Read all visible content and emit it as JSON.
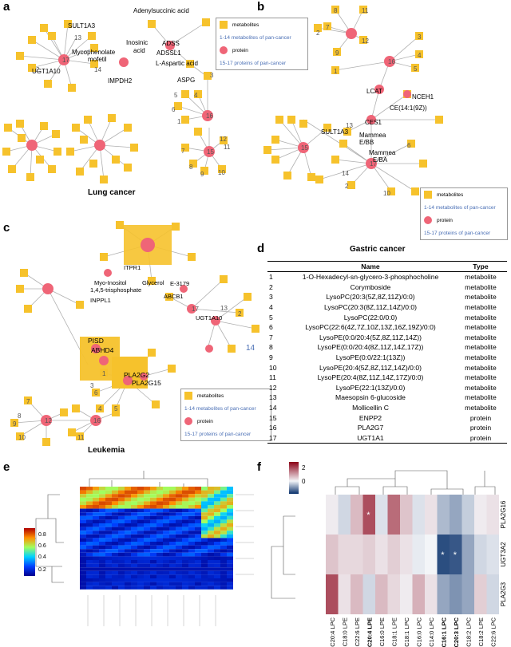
{
  "colors": {
    "metabolite": "#f6c22c",
    "protein": "#ef6577",
    "edge": "#b0b0b0",
    "legend_blue": "#4a6fb5"
  },
  "panel_labels": {
    "a": "a",
    "b": "b",
    "c": "c",
    "d": "d",
    "e": "e",
    "f": "f"
  },
  "legend": {
    "metabolites": "metabolites",
    "range_1_14": "1-14 metabolites of pan-cancer",
    "protein": "protein",
    "range_15_17": "15-17 proteins of pan-cancer"
  },
  "panel_a": {
    "title": "Lung cancer",
    "labels": {
      "sult": "SULT1A3",
      "myco": "Mycophenolate",
      "myco2": "mofetil",
      "ugt": "UGT1A10",
      "impdh": "IMPDH2",
      "adenyl": "Adenylsuccinic acid",
      "ino": "Inosinic",
      "ino2": "acid",
      "adss": "ADSS",
      "adssl": "ADSSL1",
      "lasp": "L-Aspartic acid",
      "aspg": "ASPG"
    },
    "nums": [
      "13",
      "2",
      "14",
      "17",
      "16",
      "3",
      "4",
      "5",
      "6",
      "1",
      "11",
      "7",
      "8",
      "9",
      "10",
      "12",
      "15"
    ]
  },
  "panel_b": {
    "title": "Gastric cancer",
    "labels": {
      "lcat": "LCAT",
      "nceh": "NCEH1",
      "ce": "CE(14:1(9Z))",
      "ces": "CES1",
      "sult": "SULT1A3",
      "mam1": "Mammea",
      "mam1b": "E/BB",
      "mam2": "Mammea",
      "mam2b": "E/BA"
    },
    "nums": [
      "11",
      "12",
      "7",
      "9",
      "8",
      "2",
      "3",
      "4",
      "1",
      "5",
      "16",
      "13",
      "15",
      "17",
      "14",
      "2",
      "10",
      "6"
    ]
  },
  "panel_c": {
    "title": "Leukemia",
    "labels": {
      "itpr": "ITPR1",
      "glyc": "Glycerol",
      "myoi": "Myo-Inositol",
      "myoi2": "1,4,5-trisphosphate",
      "inpp": "INPPL1",
      "e3179": "E-3179",
      "abcb": "ABCB1",
      "ugt": "UGT1A10",
      "pisd": "PISD",
      "abhd": "ABHD4",
      "pla2g": "PLA2G2",
      "pla2g15": "PLA2G15",
      "n14": "14"
    },
    "nums": [
      "13",
      "17",
      "2",
      "1",
      "6",
      "4",
      "5",
      "3",
      "7",
      "8",
      "9",
      "10",
      "11",
      "12",
      "16"
    ]
  },
  "table": {
    "headers": {
      "num": "",
      "name": "Name",
      "type": "Type"
    },
    "rows": [
      {
        "num": "1",
        "name": "1-O-Hexadecyl-sn-glycero-3-phosphocholine",
        "type": "metabolite"
      },
      {
        "num": "2",
        "name": "Corymboside",
        "type": "metabolite"
      },
      {
        "num": "3",
        "name": "LysoPC(20:3(5Z,8Z,11Z)/0:0)",
        "type": "metabolite"
      },
      {
        "num": "4",
        "name": "LysoPC(20:3(8Z,11Z,14Z)/0:0)",
        "type": "metabolite"
      },
      {
        "num": "5",
        "name": "LysoPC(22:0/0:0)",
        "type": "metabolite"
      },
      {
        "num": "6",
        "name": "LysoPC(22:6(4Z,7Z,10Z,13Z,16Z,19Z)/0:0)",
        "type": "metabolite"
      },
      {
        "num": "7",
        "name": "LysoPE(0:0/20:4(5Z,8Z,11Z,14Z))",
        "type": "metabolite"
      },
      {
        "num": "8",
        "name": "LysoPE(0:0/20:4(8Z,11Z,14Z,17Z))",
        "type": "metabolite"
      },
      {
        "num": "9",
        "name": "LysoPE(0:0/22:1(13Z))",
        "type": "metabolite"
      },
      {
        "num": "10",
        "name": "LysoPE(20:4(5Z,8Z,11Z,14Z)/0:0)",
        "type": "metabolite"
      },
      {
        "num": "11",
        "name": "LysoPE(20:4(8Z,11Z,14Z,17Z)/0:0)",
        "type": "metabolite"
      },
      {
        "num": "12",
        "name": "LysoPE(22:1(13Z)/0:0)",
        "type": "metabolite"
      },
      {
        "num": "13",
        "name": "Maesopsin 6-glucoside",
        "type": "metabolite"
      },
      {
        "num": "14",
        "name": "Mollicellin C",
        "type": "metabolite"
      },
      {
        "num": "15",
        "name": "ENPP2",
        "type": "protein"
      },
      {
        "num": "16",
        "name": "PLA2G7",
        "type": "protein"
      },
      {
        "num": "17",
        "name": "UGT1A1",
        "type": "protein"
      }
    ]
  },
  "panel_e": {
    "scale_ticks": [
      "0.8",
      "0.6",
      "0.4",
      "0.2"
    ]
  },
  "panel_f": {
    "scale_ticks": [
      "2",
      "0"
    ],
    "columns": [
      "C20:4 LPC",
      "C18:0 LPE",
      "C22:6 LPE",
      "C20:4 LPE",
      "C16:0 LPE",
      "C18:1 LPE",
      "C18:1 LPC",
      "C16:0 LPC",
      "C14:0 LPC",
      "C16:1 LPC",
      "C20:3 LPC",
      "C18:2 LPC",
      "C18:2 LPE",
      "C22:6 LPC"
    ],
    "rows": [
      "PLA2G16",
      "UGT3A2",
      "PLA2G3"
    ],
    "star": "*"
  }
}
